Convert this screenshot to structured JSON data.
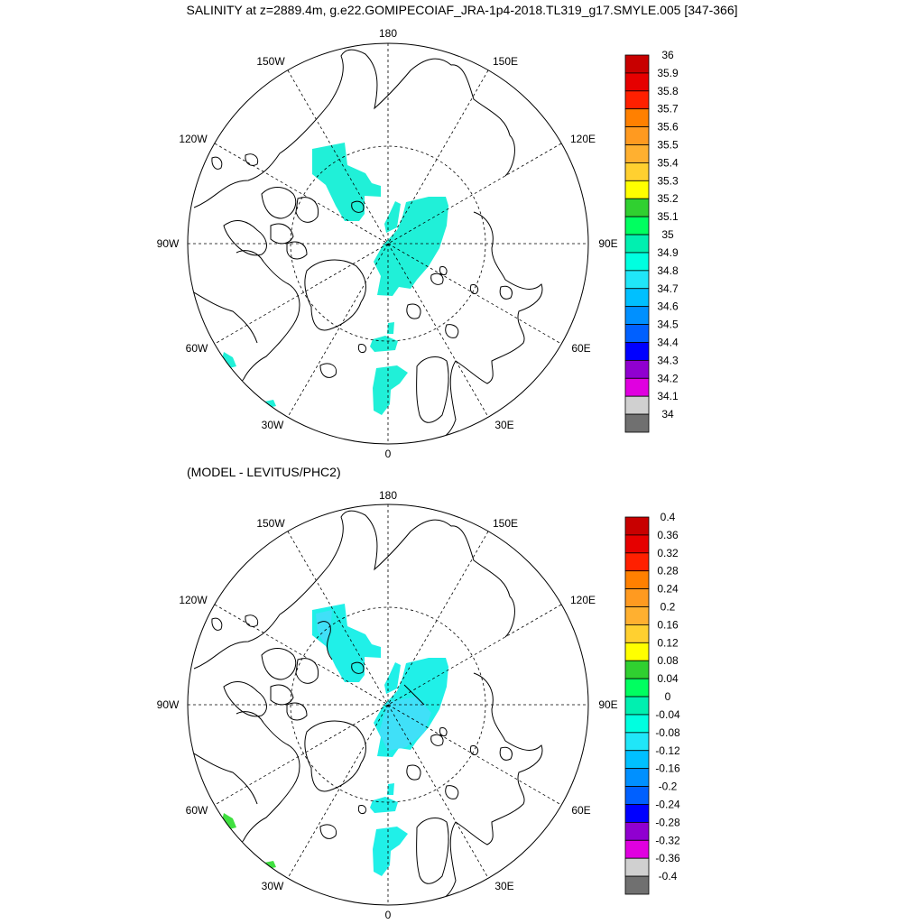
{
  "title": "SALINITY at z=2889.4m, g.e22.GOMIPECOIAF_JRA-1p4-2018.TL319_g17.SMYLE.005 [347-366]",
  "subtitle": "(MODEL - LEVITUS/PHC2)",
  "longitude_labels": {
    "lon_180": "180",
    "lon_150w": "150W",
    "lon_150e": "150E",
    "lon_120w": "120W",
    "lon_120e": "120E",
    "lon_90w": "90W",
    "lon_90e": "90E",
    "lon_60w": "60W",
    "lon_60e": "60E",
    "lon_30w": "30W",
    "lon_30e": "30E",
    "lon_0": "0"
  },
  "top_colorbar": {
    "labels": [
      "36",
      "35.9",
      "35.8",
      "35.7",
      "35.6",
      "35.5",
      "35.4",
      "35.3",
      "35.2",
      "35.1",
      "35",
      "34.9",
      "34.8",
      "34.7",
      "34.6",
      "34.5",
      "34.4",
      "34.3",
      "34.2",
      "34.1",
      "34"
    ],
    "colors": [
      "#c80000",
      "#e60000",
      "#ff2000",
      "#ff8000",
      "#ff9a20",
      "#ffb030",
      "#ffd030",
      "#ffff00",
      "#30d030",
      "#00ff60",
      "#00f0b0",
      "#00ffe0",
      "#20e6f8",
      "#00c0ff",
      "#0090ff",
      "#0060ff",
      "#0000ff",
      "#9000d0",
      "#e000e0",
      "#d0d0d0",
      "#707070"
    ]
  },
  "bottom_colorbar": {
    "labels": [
      "0.4",
      "0.36",
      "0.32",
      "0.28",
      "0.24",
      "0.2",
      "0.16",
      "0.12",
      "0.08",
      "0.04",
      "0",
      "-0.04",
      "-0.08",
      "-0.12",
      "-0.16",
      "-0.2",
      "-0.24",
      "-0.28",
      "-0.32",
      "-0.36",
      "-0.4"
    ],
    "colors": [
      "#c80000",
      "#e60000",
      "#ff2000",
      "#ff8000",
      "#ff9a20",
      "#ffb030",
      "#ffd030",
      "#ffff00",
      "#30d030",
      "#00ff60",
      "#00f0b0",
      "#00ffe0",
      "#20e6f8",
      "#00c0ff",
      "#0090ff",
      "#0060ff",
      "#0000ff",
      "#9000d0",
      "#e000e0",
      "#d0d0d0",
      "#707070"
    ]
  },
  "field_colors": {
    "top_fill": "#20f0d8",
    "bottom_fill_main": "#20f0e8",
    "bottom_fill_light": "#40e0f8",
    "bottom_fill_green": "#40e040"
  }
}
